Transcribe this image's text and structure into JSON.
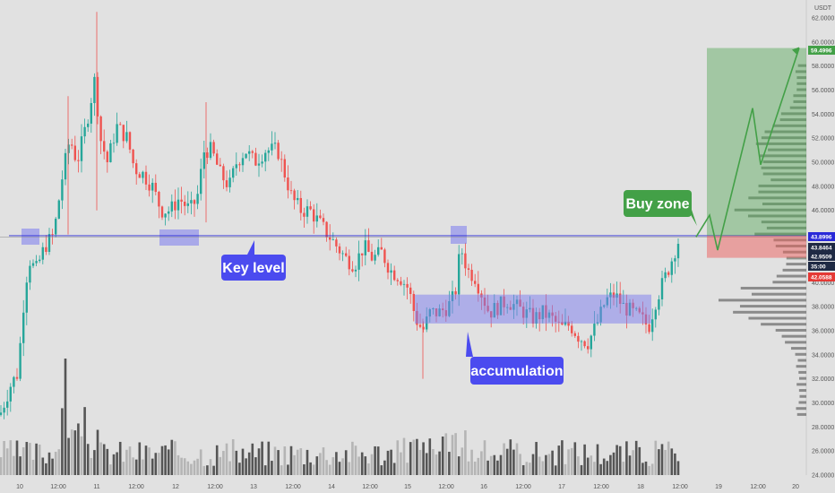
{
  "chart_data": {
    "type": "candlestick",
    "currency": "USDT",
    "ylim": [
      24,
      64
    ],
    "y_ticks": [
      "24.0000",
      "26.0000",
      "28.0000",
      "30.0000",
      "32.0000",
      "34.0000",
      "36.0000",
      "38.0000",
      "40.0000",
      "42.0000",
      "44.0000",
      "46.0000",
      "48.0000",
      "50.0000",
      "52.0000",
      "54.0000",
      "56.0000",
      "58.0000",
      "60.0000",
      "62.0000"
    ],
    "x_ticks": [
      "10",
      "12:00",
      "11",
      "12:00",
      "12",
      "12:00",
      "13",
      "12:00",
      "14",
      "12:00",
      "15",
      "12:00",
      "16",
      "12:00",
      "17",
      "12:00",
      "18",
      "12:00",
      "19",
      "12:00",
      "20"
    ],
    "price_badges": [
      {
        "text": "59.4996",
        "color": "#43a047"
      },
      {
        "text": "43.8996",
        "color": "#2a2ad8"
      },
      {
        "text": "43.8464",
        "color": "#1f2a44"
      },
      {
        "text": "42.9509",
        "color": "#1f2a44"
      },
      {
        "text": "35:00",
        "color": "#1f2a44"
      },
      {
        "text": "42.0588",
        "color": "#e53935"
      }
    ],
    "key_level": 43.9,
    "current_price": 43.85,
    "accumulation_range": [
      36.6,
      39.0
    ],
    "buy_zone": [
      42.06,
      59.5
    ],
    "stop_zone": [
      42.06,
      43.9
    ],
    "projected_path": [
      43.8,
      45.6,
      42.7,
      54.5,
      49.8,
      59.5
    ],
    "annotations": [
      "Key level",
      "accumulation",
      "Buy zone"
    ],
    "volume_profile_peaks": [
      38.2,
      45.5,
      52.0
    ],
    "colors": {
      "up": "#26a69a",
      "down": "#ef5350",
      "level": "#2a2ad8",
      "zone": "#7b7bf0",
      "buy": "#43a047"
    }
  },
  "labels": {
    "key_level": "Key level",
    "accumulation": "accumulation",
    "buy_zone": "Buy zone"
  }
}
